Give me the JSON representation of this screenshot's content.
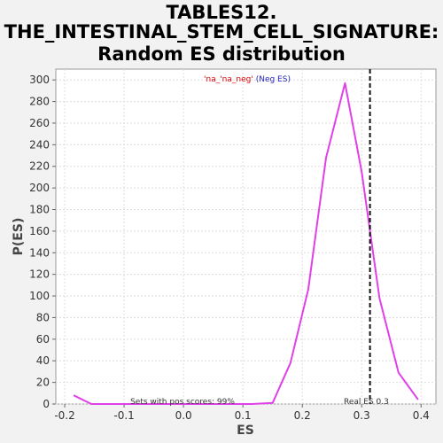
{
  "chart_data": {
    "type": "line",
    "title_lines": [
      "TABLES12.",
      "THE_INTESTINAL_STEM_CELL_SIGNATURE:",
      "Random ES distribution"
    ],
    "xlabel": "ES",
    "ylabel": "P(ES)",
    "xlim": [
      -0.215,
      0.425
    ],
    "ylim": [
      0,
      310
    ],
    "x_ticks": [
      -0.2,
      -0.1,
      0.0,
      0.1,
      0.2,
      0.3,
      0.4
    ],
    "x_tick_labels": [
      "-0.2",
      "-0.1",
      "0.0",
      "0.1",
      "0.2",
      "0.3",
      "0.4"
    ],
    "y_ticks": [
      0,
      20,
      40,
      60,
      80,
      100,
      120,
      140,
      160,
      180,
      200,
      220,
      240,
      260,
      280,
      300
    ],
    "y_tick_labels": [
      "0",
      "20",
      "40",
      "60",
      "80",
      "100",
      "120",
      "140",
      "160",
      "180",
      "200",
      "220",
      "240",
      "260",
      "280",
      "300"
    ],
    "grid": true,
    "series": [
      {
        "color": "#e040e8",
        "x": [
          -0.185,
          -0.155,
          -0.125,
          -0.095,
          -0.065,
          -0.035,
          -0.005,
          0.025,
          0.055,
          0.085,
          0.115,
          0.15,
          0.18,
          0.21,
          0.24,
          0.272,
          0.3,
          0.33,
          0.362,
          0.395
        ],
        "y": [
          8,
          0,
          0,
          0,
          0,
          0,
          0,
          0,
          0,
          0,
          0,
          1,
          38,
          106,
          228,
          297,
          215,
          98,
          29,
          4
        ]
      }
    ],
    "real_es": 0.314,
    "real_es_label": "Real ES 0.3",
    "legend": {
      "position": "top-center",
      "part1": "'na_'na_neg'",
      "part2": " (Neg ES)",
      "color1": "#dd0000",
      "color2": "#2222bb"
    },
    "pos_scores_note": "Sets with pos scores: 99%",
    "colors": {
      "background": "#f2f2f2",
      "plot_background": "#ffffff",
      "line": "#e040e8",
      "grid": "#dddddd",
      "real_es_line": "#111111"
    }
  }
}
